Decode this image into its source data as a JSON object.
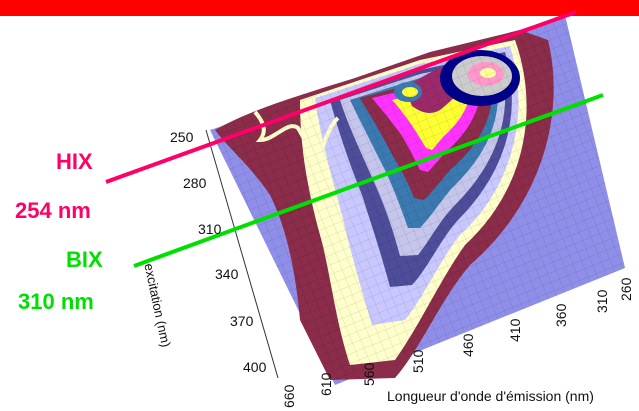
{
  "annotations": {
    "hix": {
      "title": "HIX",
      "wavelength": "254 nm",
      "color": "#ff0066"
    },
    "bix": {
      "title": "BIX",
      "wavelength": "310 nm",
      "color": "#00e000"
    }
  },
  "axes": {
    "excitation_title": "excitation (nm)",
    "emission_title": "Longueur d'onde d'émission (nm)",
    "excitation_ticks": [
      "250",
      "280",
      "310",
      "340",
      "370",
      "400"
    ],
    "emission_ticks": [
      "660",
      "610",
      "560",
      "510",
      "460",
      "410",
      "360",
      "310",
      "260"
    ]
  },
  "colors": {
    "banner": "#ff0000",
    "background_plane": "#8f8fea",
    "contour_levels": [
      "#8a2c4a",
      "#ffffcc",
      "#c8c8ff",
      "#4d4d9a",
      "#c6c6ec",
      "#3a7ab0",
      "#8a2c4a",
      "#ff33ff",
      "#ffff33",
      "#9a2a6a",
      "#000088",
      "#cccccc"
    ]
  }
}
